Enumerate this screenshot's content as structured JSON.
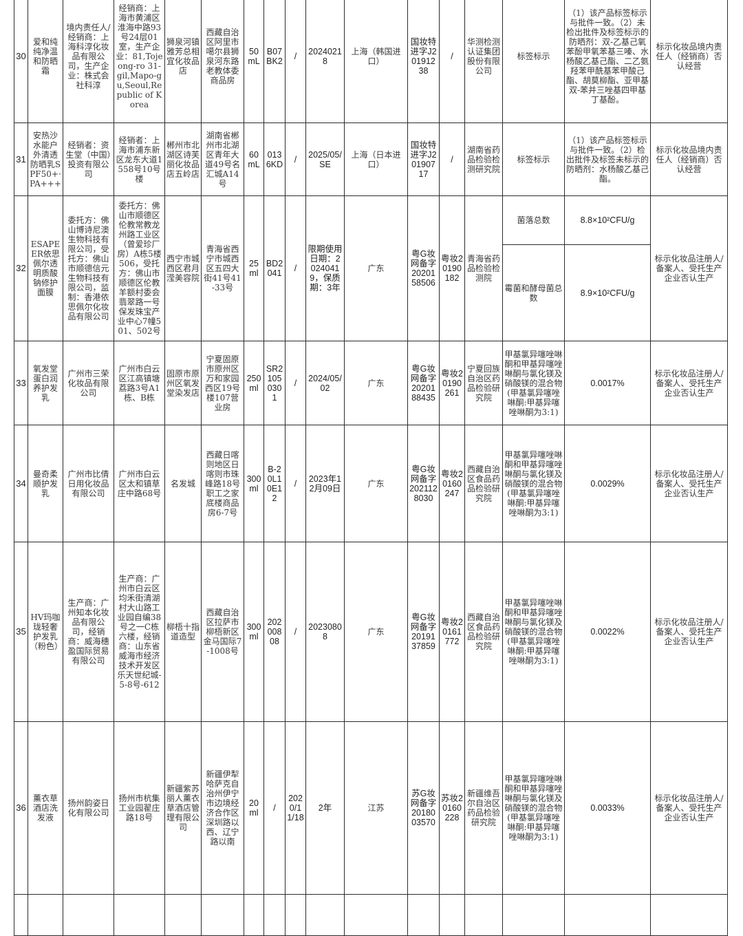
{
  "rows": [
    {
      "no": "30",
      "name": "爱和纯纯净温和防晒霜",
      "owner": "境内责任人/经销商：上海科淳化妆品有限公司，生产企业：株式会社科淳",
      "owner_addr": "经销商：上海市黄浦区淮海中路93号24层01室，生产企业：81,Tojeong-ro 31-gil,Mapo-gu,Seoul,Republic of Korea",
      "seller": "狮泉河镇雅芳总相宜化妆品店",
      "seller_addr": "西藏自治区阿里市噶尔县狮泉河东路老教体委商品房",
      "spec": "50 mL",
      "batch": "B07BK2",
      "prod_date": "/",
      "date": "20240218",
      "origin": "上海（韩国进口）",
      "license": "国妆特进字J20191238",
      "license2": "/",
      "lab": "华测检测认证集团股份有限公司",
      "tests": [
        {
          "item": "标签标示",
          "result": "（1）该产品标签标示与批件一致。（2）未检出批件及标签标示的防晒剂：双-乙基己氧苯酚甲氧苯基三嗪、水杨酸乙基己酯、二乙氨羟苯甲酰基苯甲酸己酯、胡莫柳酯、亚甲基双-苯并三唑基四甲基丁基酚。"
        }
      ],
      "remark": "标示化妆品境内责任人（经销商）否认经营"
    },
    {
      "no": "31",
      "name": "安热沙水能户外清透防晒乳SPF50+·PA+++",
      "owner": "经销者：资生堂（中国）投资有限公司",
      "owner_addr": "经销者：上海市浦东新区龙东大道1558号10号楼",
      "seller": "郴州市北湖区诗芙丽化妆品店五岭店",
      "seller_addr": "湖南省郴州市北湖区青年大道49号名汇城A14号",
      "spec": "60 mL",
      "batch": "0136KD",
      "prod_date": "/",
      "date": "2025/05/SE",
      "origin": "上海（日本进口）",
      "license": "国妆特进字J20190717",
      "license2": "/",
      "lab": "湖南省药品检验检测研究院",
      "tests": [
        {
          "item": "标签标示",
          "result": "（1）该产品标签标示与批件一致。（2）检出批件及标签未标示的防晒剂：水杨酸乙基己酯。"
        }
      ],
      "remark": "标示化妆品境内责任人（经销商）否认经营"
    },
    {
      "no": "32",
      "name": "ESAPEER依思佩尔透明质酸钠修护面膜",
      "owner": "委托方：佛山博诗尼澳生物科技有限公司，受托方：佛山市顺德信元生物科技有限公司，监制：香港依思佩尔化妆品有限公司",
      "owner_addr": "委托方：佛山市顺德区伦教常教龙州路工业区（曾爱珍厂房）A栋5楼506，受托方：佛山市顺德区伦教羊额村委会翡翠路一号保发珠宝产业中心7幢501、502号",
      "seller": "西宁市城西区君月滢美容院",
      "seller_addr": "青海省西宁市城西区五四大街41号41-33号",
      "spec": "25 ml",
      "batch": "BD2041",
      "prod_date": "/",
      "date": "限期使用日期：20240419，保质期：3年",
      "origin": "广东",
      "license": "粤G妆网备字2020158506",
      "license2": "粤妆20190182",
      "lab": "青海省药品检验检测院",
      "tests": [
        {
          "item": "菌落总数",
          "result": "8.8×10²CFU/g"
        },
        {
          "item": "霉菌和酵母菌总数",
          "result": "8.9×10²CFU/g"
        }
      ],
      "remark": "标示化妆品注册人/备案人、受托生产企业否认生产"
    },
    {
      "no": "33",
      "name": "氧发堂蛋白润养护发乳",
      "owner": "广州市三荣化妆品有限公司",
      "owner_addr": "广州市白云区江高镇塘荔路3号A1栋、B栋",
      "seller": "固原市原州区氧发堂染发店",
      "seller_addr": "宁夏固原市原州区万和家园西区19号楼107营业房",
      "spec": "250 ml",
      "batch": "SR21050301",
      "prod_date": "/",
      "date": "2024/05/02",
      "origin": "广东",
      "license": "粤G妆网备字2020188435",
      "license2": "粤妆20190261",
      "lab": "宁夏回族自治区药品检验研究院",
      "tests": [
        {
          "item": "甲基氯异噻唑啉酮和甲基异噻唑啉酮与氯化镁及硝酸镁的混合物(甲基氯异噻唑啉酮:甲基异噻唑啉酮为3:1)",
          "result": "0.0017%"
        }
      ],
      "remark": "标示化妆品注册人/备案人、受托生产企业否认生产"
    },
    {
      "no": "34",
      "name": "曼奇柔顺护发乳",
      "owner": "广州市比倩日用化妆品有限公司",
      "owner_addr": "广州市白云区太和镇草庄中路68号",
      "seller": "名发城",
      "seller_addr": "西藏日喀则地区日喀则市珠峰路18号职工之家底楼商品房6-7号",
      "spec": "300 ml",
      "batch": "B-20L10E12",
      "prod_date": "/",
      "date": "2023年12月09日",
      "origin": "广东",
      "license": "粤G妆网备字2021128030",
      "license2": "粤妆20160247",
      "lab": "西藏自治区食品药品检验研究院",
      "tests": [
        {
          "item": "甲基氯异噻唑啉酮和甲基异噻唑啉酮与氯化镁及硝酸镁的混合物(甲基氯异噻唑啉酮:甲基异噻唑啉酮为3:1)",
          "result": "0.0029%"
        }
      ],
      "remark": "标示化妆品注册人/备案人、受托生产企业否认生产"
    },
    {
      "no": "35",
      "name": "HV玛咖珑轻奢护发乳（粉色）",
      "owner": "生产商：广州知本化妆品有限公司，经销商：威海穗盈国际贸易有限公司",
      "owner_addr": "生产商：广州市白云区均禾街清湖村大山路工业园自编38号之一C栋六楼，经销商：山东省威海市经济技术开发区乐天世纪城-5-8号-612",
      "seller": "柳梧十指道造型",
      "seller_addr": "西藏自治区拉萨市柳梧新区金马国际7-1008号",
      "spec": "300 ml",
      "batch": "20200808",
      "prod_date": "/",
      "date": "20230808",
      "origin": "广东",
      "license": "粤G妆网备字2019137859",
      "license2": "粤妆20161772",
      "lab": "西藏自治区食品药品检验研究院",
      "tests": [
        {
          "item": "甲基氯异噻唑啉酮和甲基异噻唑啉酮与氯化镁及硝酸镁的混合物(甲基氯异噻唑啉酮:甲基异噻唑啉酮为3:1)",
          "result": "0.0022%"
        }
      ],
      "remark": "标示化妆品注册人/备案人、受托生产企业否认生产"
    },
    {
      "no": "36",
      "name": "薰衣草酒店洗发液",
      "owner": "扬州韵姿日化有限公司",
      "owner_addr": "扬州市杭集工业园翟庄路18号",
      "seller": "新疆紫苏丽人薰衣草酒店管理有限公司",
      "seller_addr": "新疆伊犁哈萨克自治州伊宁市边境经济合作区深圳路以西、辽宁路以南",
      "spec": "20 ml",
      "batch": "/",
      "prod_date": "2020/11/18",
      "date": "2年",
      "origin": "江苏",
      "license": "苏G妆网备字2018003570",
      "license2": "苏妆20160228",
      "lab": "新疆维吾尔自治区药品检验研究院",
      "tests": [
        {
          "item": "甲基氯异噻唑啉酮和甲基异噻唑啉酮与氯化镁及硝酸镁的混合物(甲基氯异噻唑啉酮:甲基异噻唑啉酮为3:1)",
          "result": "0.0033%"
        }
      ],
      "remark": "标示化妆品注册人/备案人、受托生产企业否认生产"
    }
  ]
}
